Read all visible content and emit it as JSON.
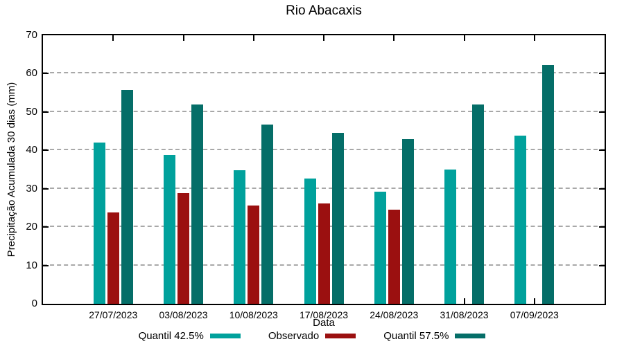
{
  "chart_data": {
    "type": "bar",
    "title": "Rio Abacaxis",
    "xlabel": "Data",
    "ylabel": "Precipitação Acumulada 30 dias (mm)",
    "categories": [
      "27/07/2023",
      "03/08/2023",
      "10/08/2023",
      "17/08/2023",
      "24/08/2023",
      "31/08/2023",
      "07/09/2023"
    ],
    "series": [
      {
        "name": "Quantil 42.5%",
        "color": "#00A19C",
        "values": [
          42.1,
          38.8,
          34.9,
          32.7,
          29.3,
          35.0,
          43.8
        ]
      },
      {
        "name": "Observado",
        "color": "#9B1010",
        "values": [
          23.8,
          28.9,
          25.6,
          26.2,
          24.5,
          null,
          null
        ]
      },
      {
        "name": "Quantil 57.5%",
        "color": "#056E68",
        "values": [
          55.8,
          51.9,
          46.8,
          44.5,
          43.0,
          51.9,
          62.3
        ]
      }
    ],
    "ylim": [
      0,
      70
    ],
    "yticks": [
      0,
      10,
      20,
      30,
      40,
      50,
      60,
      70
    ],
    "grid": "horizontal-dashed",
    "legend_position": "bottom"
  },
  "style_colors": {
    "grid": "#a8a8a8",
    "axis": "#000000",
    "background": "#ffffff"
  }
}
